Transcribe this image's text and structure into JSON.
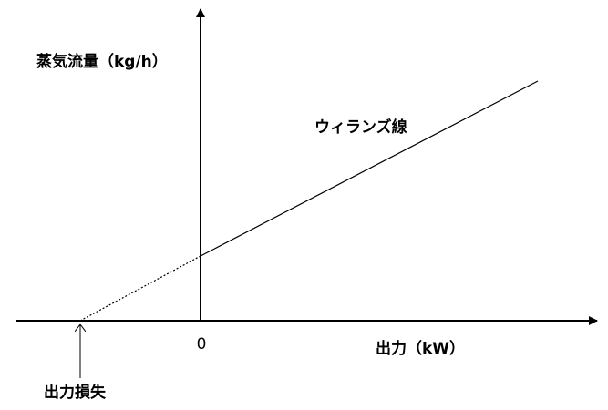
{
  "y_axis_label": "蒸気流量（kg/h）",
  "x_axis_label": "出力（kW）",
  "origin_label": "0",
  "line_label": "ウィランズ線",
  "loss_label": "出力損失"
}
